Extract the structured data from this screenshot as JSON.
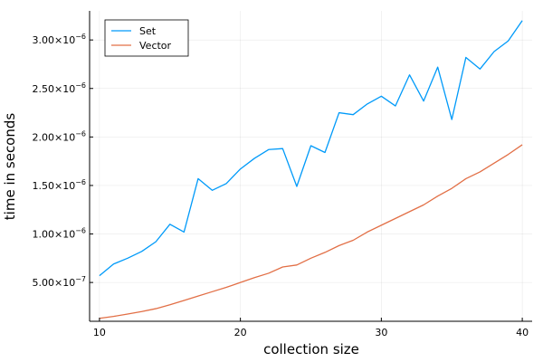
{
  "chart_data": {
    "type": "line",
    "title": "",
    "xlabel": "collection size",
    "ylabel": "time in seconds",
    "xlim": [
      9.3,
      40.7
    ],
    "ylim": [
      1e-07,
      3.3e-06
    ],
    "grid": true,
    "legend_position": "top-left",
    "x_ticks": [
      {
        "value": 10,
        "label": "10"
      },
      {
        "value": 20,
        "label": "20"
      },
      {
        "value": 30,
        "label": "30"
      },
      {
        "value": 40,
        "label": "40"
      }
    ],
    "y_ticks": [
      {
        "value": 5e-07,
        "mantissa": "5.00×10",
        "exp": "−7"
      },
      {
        "value": 1e-06,
        "mantissa": "1.00×10",
        "exp": "−6"
      },
      {
        "value": 1.5e-06,
        "mantissa": "1.50×10",
        "exp": "−6"
      },
      {
        "value": 2e-06,
        "mantissa": "2.00×10",
        "exp": "−6"
      },
      {
        "value": 2.5e-06,
        "mantissa": "2.50×10",
        "exp": "−6"
      },
      {
        "value": 3e-06,
        "mantissa": "3.00×10",
        "exp": "−6"
      }
    ],
    "x": [
      10,
      11,
      12,
      13,
      14,
      15,
      16,
      17,
      18,
      19,
      20,
      21,
      22,
      23,
      24,
      25,
      26,
      27,
      28,
      29,
      30,
      31,
      32,
      33,
      34,
      35,
      36,
      37,
      38,
      39,
      40
    ],
    "series": [
      {
        "name": "Set",
        "color": "#009af9",
        "values": [
          5.7e-07,
          6.9e-07,
          7.5e-07,
          8.2e-07,
          9.2e-07,
          1.1e-06,
          1.02e-06,
          1.57e-06,
          1.45e-06,
          1.52e-06,
          1.67e-06,
          1.78e-06,
          1.87e-06,
          1.88e-06,
          1.49e-06,
          1.91e-06,
          1.84e-06,
          2.25e-06,
          2.23e-06,
          2.34e-06,
          2.42e-06,
          2.32e-06,
          2.64e-06,
          2.37e-06,
          2.72e-06,
          2.18e-06,
          2.82e-06,
          2.7e-06,
          2.88e-06,
          2.99e-06,
          3.2e-06
        ]
      },
      {
        "name": "Vector",
        "color": "#e26f46",
        "values": [
          1.3e-07,
          1.5e-07,
          1.75e-07,
          2e-07,
          2.3e-07,
          2.7e-07,
          3.15e-07,
          3.6e-07,
          4.05e-07,
          4.5e-07,
          5e-07,
          5.5e-07,
          5.95e-07,
          6.6e-07,
          6.8e-07,
          7.5e-07,
          8.1e-07,
          8.8e-07,
          9.35e-07,
          1.02e-06,
          1.09e-06,
          1.16e-06,
          1.23e-06,
          1.3e-06,
          1.39e-06,
          1.47e-06,
          1.57e-06,
          1.64e-06,
          1.73e-06,
          1.82e-06,
          1.92e-06
        ]
      }
    ]
  }
}
